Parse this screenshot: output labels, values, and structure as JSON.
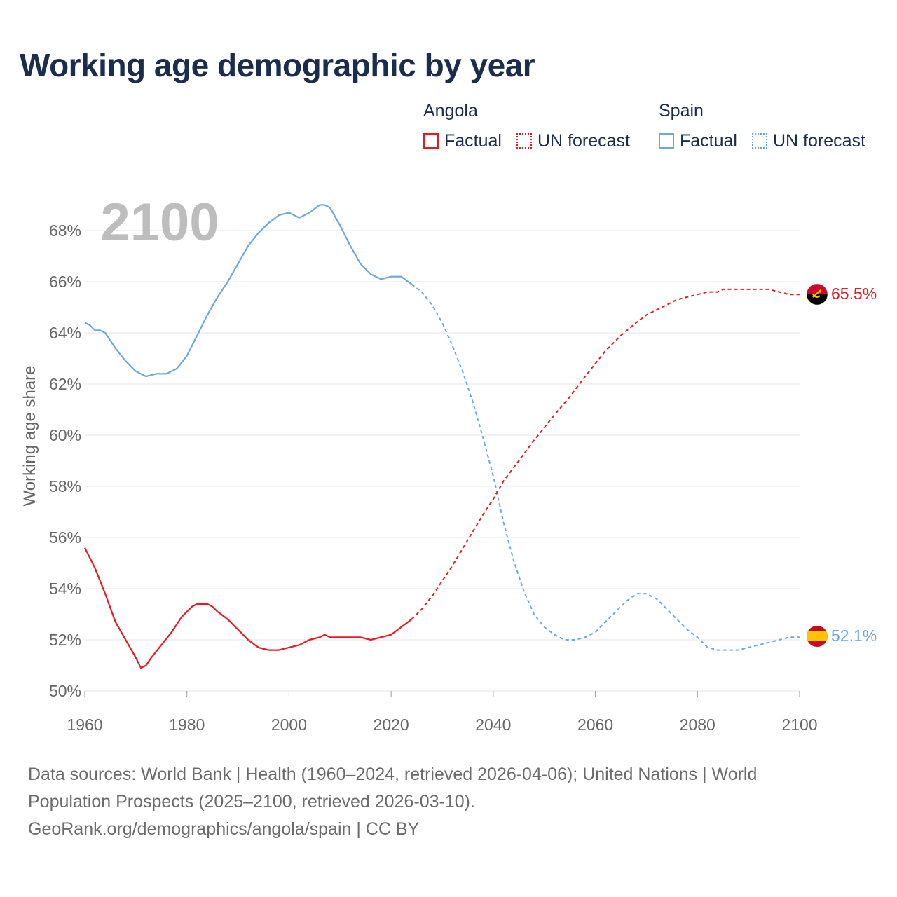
{
  "title": "Working age demographic by year",
  "legend": {
    "angola": {
      "name": "Angola",
      "factual": "Factual",
      "forecast": "UN forecast"
    },
    "spain": {
      "name": "Spain",
      "factual": "Factual",
      "forecast": "UN forecast"
    }
  },
  "colors": {
    "angola": "#e8191f",
    "spain": "#6aa8e0",
    "year_watermark": "#bdbdbd",
    "axis_text": "#666666"
  },
  "sources": {
    "line1": "Data sources: World Bank | Health (1960–2024, retrieved 2026-04-06); United Nations | World",
    "line2": "Population Prospects (2025–2100, retrieved 2026-03-10).",
    "line3": "GeoRank.org/demographics/angola/spain | CC BY"
  },
  "chart_data": {
    "type": "line",
    "title": "Working age demographic by year",
    "ylabel": "Working age share",
    "xlabel": "",
    "current_year_label": "2100",
    "xlim": [
      1960,
      2100
    ],
    "ylim": [
      50,
      70
    ],
    "x_ticks": [
      1960,
      1980,
      2000,
      2020,
      2040,
      2060,
      2080,
      2100
    ],
    "x_tick_labels": [
      "1960",
      "1980",
      "2000",
      "2020",
      "2040",
      "2060",
      "2080",
      "2100"
    ],
    "y_ticks": [
      50,
      52,
      54,
      56,
      58,
      60,
      62,
      64,
      66,
      68
    ],
    "y_tick_labels": [
      "50%",
      "52%",
      "54%",
      "56%",
      "58%",
      "60%",
      "62%",
      "64%",
      "66%",
      "68%"
    ],
    "series": [
      {
        "name": "Angola",
        "end_label": "65.5%",
        "factual": {
          "x": [
            1960,
            1962,
            1964,
            1966,
            1968,
            1970,
            1971,
            1972,
            1973,
            1975,
            1977,
            1978,
            1979,
            1980,
            1981,
            1982,
            1983,
            1984,
            1985,
            1986,
            1988,
            1990,
            1992,
            1994,
            1996,
            1998,
            2000,
            2002,
            2004,
            2006,
            2007,
            2008,
            2010,
            2012,
            2014,
            2016,
            2018,
            2020,
            2022,
            2024
          ],
          "y": [
            55.6,
            54.8,
            53.8,
            52.7,
            52.0,
            51.3,
            50.9,
            51.0,
            51.3,
            51.8,
            52.3,
            52.6,
            52.9,
            53.1,
            53.3,
            53.4,
            53.4,
            53.4,
            53.3,
            53.1,
            52.8,
            52.4,
            52.0,
            51.7,
            51.6,
            51.6,
            51.7,
            51.8,
            52.0,
            52.1,
            52.2,
            52.1,
            52.1,
            52.1,
            52.1,
            52.0,
            52.1,
            52.2,
            52.5,
            52.8
          ]
        },
        "forecast": {
          "x": [
            2024,
            2026,
            2028,
            2030,
            2032,
            2035,
            2038,
            2040,
            2042,
            2045,
            2048,
            2050,
            2052,
            2055,
            2058,
            2060,
            2062,
            2065,
            2068,
            2070,
            2073,
            2076,
            2078,
            2080,
            2082,
            2084,
            2085,
            2088,
            2090,
            2092,
            2094,
            2096,
            2098,
            2100
          ],
          "y": [
            52.8,
            53.2,
            53.7,
            54.3,
            54.9,
            55.9,
            56.9,
            57.5,
            58.2,
            59.0,
            59.8,
            60.3,
            60.8,
            61.5,
            62.3,
            62.8,
            63.3,
            63.9,
            64.4,
            64.7,
            65.0,
            65.3,
            65.4,
            65.5,
            65.6,
            65.6,
            65.7,
            65.7,
            65.7,
            65.7,
            65.7,
            65.6,
            65.5,
            65.5
          ]
        }
      },
      {
        "name": "Spain",
        "end_label": "52.1%",
        "factual": {
          "x": [
            1960,
            1961,
            1962,
            1963,
            1964,
            1966,
            1968,
            1970,
            1972,
            1974,
            1976,
            1978,
            1980,
            1982,
            1984,
            1986,
            1988,
            1990,
            1992,
            1994,
            1996,
            1998,
            2000,
            2002,
            2004,
            2006,
            2007,
            2008,
            2010,
            2012,
            2014,
            2016,
            2018,
            2020,
            2022,
            2024
          ],
          "y": [
            64.4,
            64.3,
            64.1,
            64.1,
            64.0,
            63.4,
            62.9,
            62.5,
            62.3,
            62.4,
            62.4,
            62.6,
            63.1,
            63.9,
            64.7,
            65.4,
            66.0,
            66.7,
            67.4,
            67.9,
            68.3,
            68.6,
            68.7,
            68.5,
            68.7,
            69.0,
            69.0,
            68.9,
            68.2,
            67.4,
            66.7,
            66.3,
            66.1,
            66.2,
            66.2,
            65.9
          ]
        },
        "forecast": {
          "x": [
            2024,
            2026,
            2028,
            2030,
            2032,
            2034,
            2036,
            2038,
            2040,
            2042,
            2044,
            2046,
            2048,
            2050,
            2052,
            2054,
            2056,
            2058,
            2060,
            2062,
            2064,
            2066,
            2068,
            2070,
            2072,
            2074,
            2076,
            2078,
            2080,
            2082,
            2084,
            2086,
            2088,
            2090,
            2092,
            2094,
            2096,
            2098,
            2100
          ],
          "y": [
            65.9,
            65.6,
            65.1,
            64.4,
            63.5,
            62.5,
            61.3,
            59.9,
            58.4,
            56.6,
            55.1,
            53.9,
            53.0,
            52.5,
            52.2,
            52.0,
            52.0,
            52.1,
            52.3,
            52.7,
            53.1,
            53.5,
            53.8,
            53.8,
            53.6,
            53.2,
            52.8,
            52.4,
            52.1,
            51.7,
            51.6,
            51.6,
            51.6,
            51.7,
            51.8,
            51.9,
            52.0,
            52.1,
            52.1
          ]
        }
      }
    ]
  }
}
